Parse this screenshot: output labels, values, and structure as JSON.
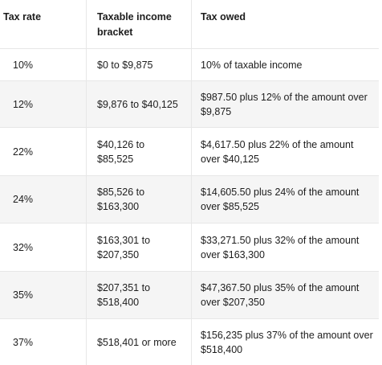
{
  "headers": {
    "tax_rate": "Tax rate",
    "bracket_line1": "Taxable income",
    "bracket_line2": "bracket",
    "tax_owed": "Tax owed"
  },
  "rows": [
    {
      "rate": "10%",
      "bracket_line1": "$0 to $9,875",
      "bracket_line2": "",
      "owed_line1": "10% of taxable income",
      "owed_line2": ""
    },
    {
      "rate": "12%",
      "bracket_line1": "$9,876 to $40,125",
      "bracket_line2": "",
      "owed_line1": "$987.50 plus 12% of the amount over",
      "owed_line2": "$9,875"
    },
    {
      "rate": "22%",
      "bracket_line1": "$40,126 to",
      "bracket_line2": "$85,525",
      "owed_line1": "$4,617.50 plus 22% of the amount",
      "owed_line2": "over $40,125"
    },
    {
      "rate": "24%",
      "bracket_line1": "$85,526 to",
      "bracket_line2": "$163,300",
      "owed_line1": "$14,605.50 plus 24% of the amount",
      "owed_line2": "over $85,525"
    },
    {
      "rate": "32%",
      "bracket_line1": "$163,301 to",
      "bracket_line2": "$207,350",
      "owed_line1": "$33,271.50 plus 32% of the amount",
      "owed_line2": "over $163,300"
    },
    {
      "rate": "35%",
      "bracket_line1": "$207,351 to",
      "bracket_line2": "$518,400",
      "owed_line1": "$47,367.50 plus 35% of the amount",
      "owed_line2": "over $207,350"
    },
    {
      "rate": "37%",
      "bracket_line1": "$518,401 or more",
      "bracket_line2": "",
      "owed_line1": "$156,235 plus 37% of the amount over",
      "owed_line2": "$518,400"
    }
  ]
}
